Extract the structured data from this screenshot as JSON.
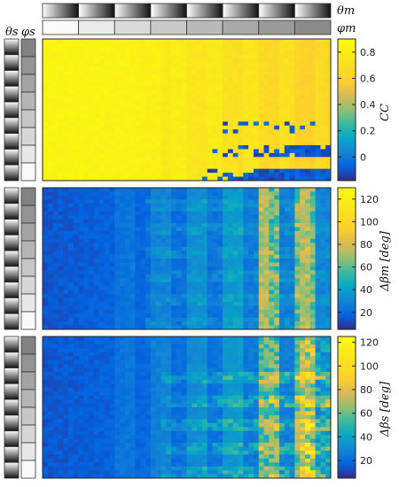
{
  "theta_m_label": "θm",
  "varphi_m_label": "φm",
  "theta_s_label": "θs",
  "varphi_s_label": "φs",
  "chart_data": [
    {
      "type": "heatmap",
      "title": "",
      "colorbar_label": "CC",
      "clim": [
        -0.18,
        0.9
      ],
      "colorbar_ticks": [
        0,
        0.2,
        0.4,
        0.6,
        0.8
      ],
      "colorbar_tick_labels": [
        "0",
        "0.2",
        "0.4",
        "0.6",
        "0.8"
      ],
      "colormap": "parula",
      "xlabel": "",
      "ylabel": ""
    },
    {
      "type": "heatmap",
      "title": "",
      "colorbar_label": "Δβm [deg]",
      "clim": [
        5,
        130
      ],
      "colorbar_ticks": [
        20,
        40,
        60,
        80,
        100,
        120
      ],
      "colorbar_tick_labels": [
        "20",
        "40",
        "60",
        "80",
        "100",
        "120"
      ],
      "colormap": "parula",
      "xlabel": "",
      "ylabel": ""
    },
    {
      "type": "heatmap",
      "title": "",
      "colorbar_label": "Δβs [deg]",
      "clim": [
        5,
        125
      ],
      "colorbar_ticks": [
        20,
        40,
        60,
        80,
        100,
        120
      ],
      "colorbar_tick_labels": [
        "20",
        "40",
        "60",
        "80",
        "100",
        "120"
      ],
      "colormap": "parula",
      "xlabel": "",
      "ylabel": ""
    }
  ]
}
